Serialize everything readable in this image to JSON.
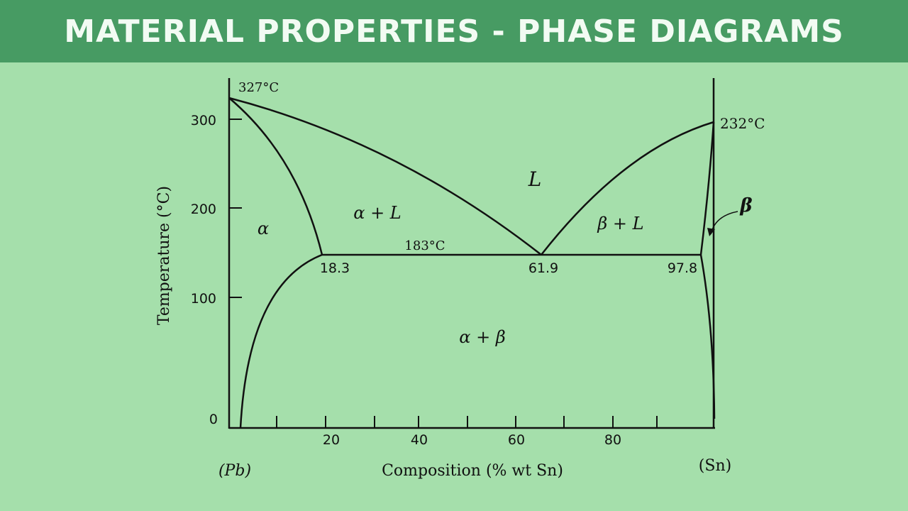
{
  "header": {
    "title": "MATERIAL PROPERTIES - PHASE DIAGRAMS"
  },
  "axes": {
    "ylabel": "Temperature (°C)",
    "xlabel": "Composition (% wt Sn)",
    "yticks": [
      "300",
      "200",
      "100",
      "0"
    ],
    "xticks": [
      "20",
      "40",
      "60",
      "80"
    ],
    "left_end_label": "(Pb)",
    "right_end_label": "(Sn)"
  },
  "annotations": {
    "pb_melt": "327°C",
    "sn_melt": "232°C",
    "eutectic_temp": "183°C",
    "comp_alpha": "18.3",
    "comp_eutectic": "61.9",
    "comp_beta": "97.8"
  },
  "phases": {
    "liquid": "L",
    "alpha": "α",
    "alpha_liquid": "α + L",
    "beta_liquid": "β + L",
    "alpha_beta": "α + β",
    "beta": "β"
  }
}
